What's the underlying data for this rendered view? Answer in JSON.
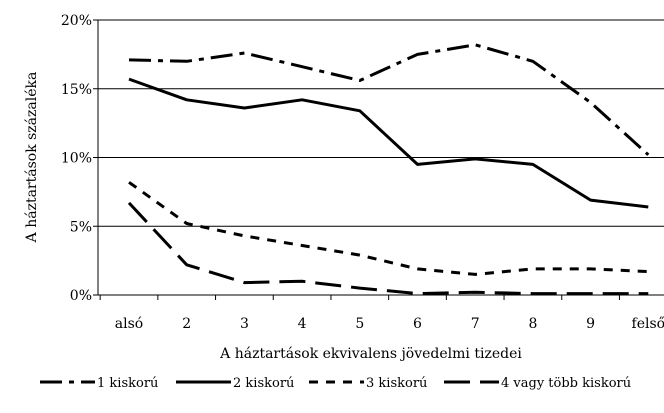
{
  "chart_data": {
    "type": "line",
    "xlabel": "A háztartások ekvivalens jövedelmi tizedei",
    "ylabel": "A háztartások százaléka",
    "ylim": [
      0,
      20
    ],
    "yticks": [
      "0%",
      "5%",
      "10%",
      "15%",
      "20%"
    ],
    "ytick_values": [
      0,
      5,
      10,
      15,
      20
    ],
    "categories": [
      "alsó",
      "2",
      "3",
      "4",
      "5",
      "6",
      "7",
      "8",
      "9",
      "felső"
    ],
    "grid": "horizontal",
    "legend_position": "bottom",
    "series": [
      {
        "name": "1 kiskorú",
        "style": "dash-dot",
        "color": "#000000",
        "values": [
          17.1,
          17.0,
          17.6,
          16.6,
          15.6,
          17.5,
          18.2,
          17.0,
          14.0,
          10.2
        ]
      },
      {
        "name": "2 kiskorú",
        "style": "solid",
        "color": "#000000",
        "values": [
          15.7,
          14.2,
          13.6,
          14.2,
          13.4,
          9.5,
          9.9,
          9.5,
          6.9,
          6.4
        ]
      },
      {
        "name": "3 kiskorú",
        "style": "short-dash",
        "color": "#000000",
        "values": [
          8.2,
          5.2,
          4.3,
          3.6,
          2.9,
          1.9,
          1.5,
          1.9,
          1.9,
          1.7
        ]
      },
      {
        "name": "4 vagy több kiskorú",
        "style": "long-dash",
        "color": "#000000",
        "values": [
          6.7,
          2.2,
          0.9,
          1.0,
          0.5,
          0.1,
          0.2,
          0.1,
          0.1,
          0.1
        ]
      }
    ]
  }
}
